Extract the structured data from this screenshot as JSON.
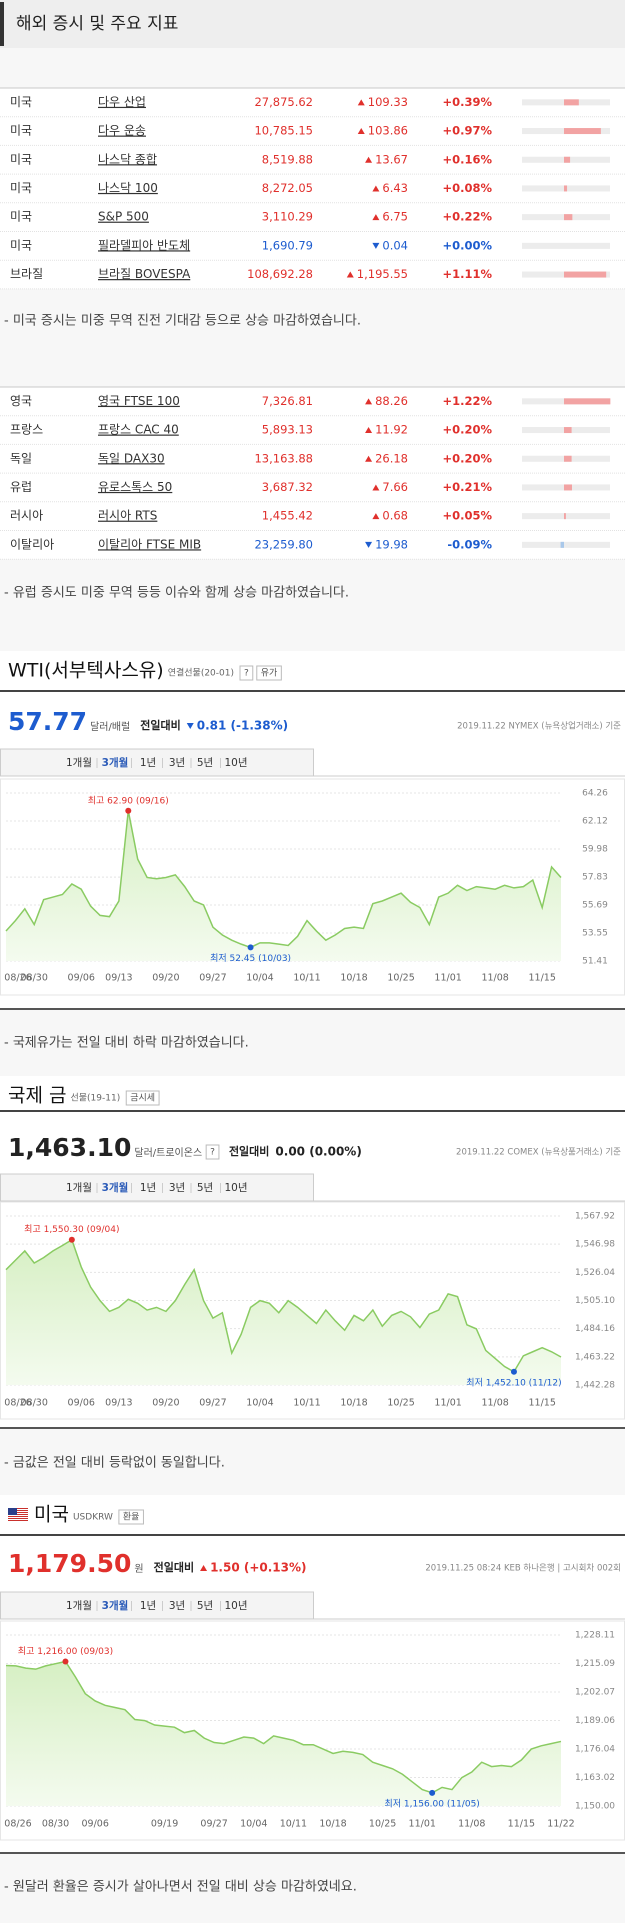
{
  "header": {
    "title": "해외 증시 및 주요 지표"
  },
  "colors": {
    "up": "#e0302c",
    "down": "#1d5ccf",
    "flat": "#222222",
    "up_bar": "#f2a3a3",
    "down_bar": "#a9c8ea",
    "line": "#8acb62",
    "area": "#e3f4d6"
  },
  "us_table": {
    "rows": [
      {
        "country": "미국",
        "name": "다우 산업",
        "price": "27,875.62",
        "change": "109.33",
        "change_pct": "+0.39%",
        "direction": "up"
      },
      {
        "country": "미국",
        "name": "다우 운송",
        "price": "10,785.15",
        "change": "103.86",
        "change_pct": "+0.97%",
        "direction": "up"
      },
      {
        "country": "미국",
        "name": "나스닥 종합",
        "price": "8,519.88",
        "change": "13.67",
        "change_pct": "+0.16%",
        "direction": "up"
      },
      {
        "country": "미국",
        "name": "나스닥 100",
        "price": "8,272.05",
        "change": "6.43",
        "change_pct": "+0.08%",
        "direction": "up"
      },
      {
        "country": "미국",
        "name": "S&P 500",
        "price": "3,110.29",
        "change": "6.75",
        "change_pct": "+0.22%",
        "direction": "up"
      },
      {
        "country": "미국",
        "name": "필라델피아 반도체",
        "price": "1,690.79",
        "change": "0.04",
        "change_pct": "+0.00%",
        "direction": "down"
      },
      {
        "country": "브라질",
        "name": "브라질 BOVESPA",
        "price": "108,692.28",
        "change": "1,195.55",
        "change_pct": "+1.11%",
        "direction": "up"
      }
    ],
    "pct": [
      0.39,
      0.97,
      0.16,
      0.08,
      0.22,
      0.0,
      1.11
    ]
  },
  "us_note": "- 미국 증시는 미중 무역 진전 기대감 등으로 상승 마감하였습니다.",
  "eu_table": {
    "rows": [
      {
        "country": "영국",
        "name": "영국 FTSE 100",
        "price": "7,326.81",
        "change": "88.26",
        "change_pct": "+1.22%",
        "direction": "up"
      },
      {
        "country": "프랑스",
        "name": "프랑스 CAC 40",
        "price": "5,893.13",
        "change": "11.92",
        "change_pct": "+0.20%",
        "direction": "up"
      },
      {
        "country": "독일",
        "name": "독일 DAX30",
        "price": "13,163.88",
        "change": "26.18",
        "change_pct": "+0.20%",
        "direction": "up"
      },
      {
        "country": "유럽",
        "name": "유로스톡스 50",
        "price": "3,687.32",
        "change": "7.66",
        "change_pct": "+0.21%",
        "direction": "up"
      },
      {
        "country": "러시아",
        "name": "러시아 RTS",
        "price": "1,455.42",
        "change": "0.68",
        "change_pct": "+0.05%",
        "direction": "up"
      },
      {
        "country": "이탈리아",
        "name": "이탈리아 FTSE MIB",
        "price": "23,259.80",
        "change": "19.98",
        "change_pct": "-0.09%",
        "direction": "down"
      }
    ],
    "pct": [
      1.22,
      0.2,
      0.2,
      0.21,
      0.05,
      -0.09
    ]
  },
  "eu_note": "- 유럽 증시도 미중 무역 등등 이슈와 함께 상승 마감하였습니다.",
  "chart_data": [
    {
      "type": "line",
      "title": "WTI(서부텍사스유)",
      "subtitle": "연결선물(20-01)",
      "buttons": [
        "?",
        "유가"
      ],
      "price": "57.77",
      "unit": "달러/배럴",
      "change_label": "전일대비",
      "change": "0.81 (-1.38%)",
      "direction": "down",
      "source": "2019.11.22 NYMEX (뉴욕상업거래소) 기준",
      "periods": [
        "1개월",
        "3개월",
        "1년",
        "3년",
        "5년",
        "10년"
      ],
      "active_period": "3개월",
      "high_label": "최고 62.90 (09/16)",
      "low_label": "최저 52.45 (10/03)",
      "categories": [
        "08/26",
        null,
        null,
        "08/30",
        null,
        null,
        null,
        null,
        "09/06",
        null,
        null,
        null,
        "09/13",
        null,
        null,
        null,
        null,
        "09/20",
        null,
        null,
        null,
        null,
        "09/27",
        null,
        null,
        null,
        null,
        "10/04",
        null,
        null,
        null,
        null,
        "10/11",
        null,
        null,
        null,
        null,
        "10/18",
        null,
        null,
        null,
        null,
        "10/25",
        null,
        null,
        null,
        null,
        "11/01",
        null,
        null,
        null,
        null,
        "11/08",
        null,
        null,
        null,
        null,
        "11/15",
        null,
        null
      ],
      "values": [
        53.7,
        54.5,
        55.4,
        54.2,
        56.1,
        56.3,
        56.5,
        57.3,
        56.9,
        55.6,
        54.9,
        54.8,
        56.0,
        62.9,
        59.2,
        57.8,
        57.7,
        57.8,
        58.0,
        57.1,
        56.0,
        55.7,
        54.0,
        53.4,
        53.0,
        52.7,
        52.45,
        52.8,
        52.8,
        52.7,
        52.6,
        53.3,
        54.5,
        53.7,
        53.0,
        53.4,
        53.9,
        54.0,
        53.9,
        55.8,
        56.0,
        56.3,
        56.6,
        55.9,
        55.5,
        54.2,
        56.3,
        56.6,
        57.2,
        56.8,
        57.1,
        57.0,
        56.9,
        57.2,
        57.0,
        57.1,
        57.6,
        55.5,
        58.6,
        57.8
      ],
      "ylim": [
        51.41,
        64.26
      ],
      "yticks": [
        64.26,
        62.12,
        59.98,
        57.83,
        55.69,
        53.55,
        51.41
      ],
      "grid": true
    },
    {
      "type": "line",
      "title": "국제 금",
      "subtitle": "선물(19-11)",
      "buttons": [
        "금시세"
      ],
      "price": "1,463.10",
      "unit": "달러/트로이온스",
      "unit_button": "?",
      "change_label": "전일대비",
      "change": "0.00 (0.00%)",
      "direction": "flat",
      "source": "2019.11.22 COMEX (뉴욕상품거래소) 기준",
      "periods": [
        "1개월",
        "3개월",
        "1년",
        "3년",
        "5년",
        "10년"
      ],
      "active_period": "3개월",
      "high_label": "최고 1,550.30 (09/04)",
      "low_label": "최저 1,452.10 (11/12)",
      "categories": [
        "08/26",
        null,
        null,
        "08/30",
        null,
        null,
        null,
        null,
        "09/06",
        null,
        null,
        null,
        "09/13",
        null,
        null,
        null,
        null,
        "09/20",
        null,
        null,
        null,
        null,
        "09/27",
        null,
        null,
        null,
        null,
        "10/04",
        null,
        null,
        null,
        null,
        "10/11",
        null,
        null,
        null,
        null,
        "10/18",
        null,
        null,
        null,
        null,
        "10/25",
        null,
        null,
        null,
        null,
        "11/01",
        null,
        null,
        null,
        null,
        "11/08",
        null,
        null,
        null,
        null,
        "11/15",
        null,
        null
      ],
      "values": [
        1528,
        1535,
        1542,
        1533,
        1537,
        1542,
        1546,
        1550.3,
        1530,
        1515,
        1505,
        1497,
        1500,
        1506,
        1503,
        1498,
        1500,
        1497,
        1505,
        1517,
        1528,
        1505,
        1492,
        1496,
        1466,
        1480,
        1500,
        1505,
        1503,
        1496,
        1505,
        1500,
        1494,
        1488,
        1498,
        1490,
        1483,
        1494,
        1490,
        1498,
        1486,
        1494,
        1497,
        1493,
        1485,
        1495,
        1498,
        1510,
        1508,
        1487,
        1484,
        1468,
        1462,
        1456,
        1452.1,
        1464,
        1467,
        1470,
        1467,
        1463.1
      ],
      "ylim": [
        1442.28,
        1567.92
      ],
      "yticks": [
        {
          "value": 1567.92,
          "label": "1,567.92"
        },
        {
          "value": 1546.98,
          "label": "1,546.98"
        },
        {
          "value": 1526.04,
          "label": "1,526.04"
        },
        {
          "value": 1505.1,
          "label": "1,505.10"
        },
        {
          "value": 1484.16,
          "label": "1,484.16"
        },
        {
          "value": 1463.22,
          "label": "1,463.22"
        },
        {
          "value": 1442.28,
          "label": "1,442.28"
        }
      ],
      "grid": true
    },
    {
      "type": "line",
      "title": "미국",
      "subtitle": "USDKRW",
      "buttons": [
        "환율"
      ],
      "price": "1,179.50",
      "unit": "원",
      "change_label": "전일대비",
      "change": "1.50 (+0.13%)",
      "direction": "up",
      "source": "2019.11.25 08:24 KEB 하나은행 | 고시회차 002회",
      "periods": [
        "1개월",
        "3개월",
        "1년",
        "3년",
        "5년",
        "10년"
      ],
      "active_period": "3개월",
      "high_label": "최고 1,216.00 (09/03)",
      "low_label": "최저 1,156.00 (11/05)",
      "categories": [
        null,
        "08/26",
        null,
        null,
        null,
        "08/30",
        null,
        null,
        null,
        "09/06",
        null,
        null,
        null,
        null,
        null,
        null,
        "09/19",
        null,
        null,
        null,
        null,
        "09/27",
        null,
        null,
        null,
        "10/04",
        null,
        null,
        null,
        "10/11",
        null,
        null,
        null,
        "10/18",
        null,
        null,
        null,
        null,
        "10/25",
        null,
        null,
        null,
        "11/01",
        null,
        null,
        null,
        null,
        "11/08",
        null,
        null,
        null,
        null,
        "11/15",
        null,
        null,
        null,
        "11/22"
      ],
      "values": [
        1214.2,
        1214.0,
        1213.0,
        1212.5,
        1214.0,
        1215.0,
        1216.0,
        1209.0,
        1201.3,
        1198.0,
        1196.0,
        1195.0,
        1194.0,
        1189.5,
        1189.0,
        1187.0,
        1186.5,
        1186.0,
        1183.5,
        1184.5,
        1181.0,
        1179.0,
        1178.5,
        1180.0,
        1181.5,
        1181.0,
        1178.5,
        1182.0,
        1181.0,
        1180.0,
        1178.0,
        1178.0,
        1176.0,
        1174.0,
        1175.0,
        1174.5,
        1173.5,
        1170.0,
        1168.5,
        1167.0,
        1164.5,
        1161.0,
        1157.5,
        1156.0,
        1158.5,
        1157.5,
        1163.0,
        1165.5,
        1170.0,
        1168.0,
        1168.5,
        1168.0,
        1171.0,
        1176.0,
        1177.5,
        1178.5,
        1179.5
      ],
      "ylim": [
        1150.0,
        1228.11
      ],
      "yticks": [
        {
          "value": 1228.11,
          "label": "1,228.11"
        },
        {
          "value": 1215.09,
          "label": "1,215.09"
        },
        {
          "value": 1202.07,
          "label": "1,202.07"
        },
        {
          "value": 1189.06,
          "label": "1,189.06"
        },
        {
          "value": 1176.04,
          "label": "1,176.04"
        },
        {
          "value": 1163.02,
          "label": "1,163.02"
        },
        {
          "value": 1150,
          "label": "1,150.00"
        }
      ],
      "grid": true
    }
  ],
  "wti_note": "- 국제유가는 전일 대비 하락 마감하였습니다.",
  "gold_note": "- 금값은 전일 대비 등락없이 동일합니다.",
  "usd_note": "- 원달러 환율은 증시가 살아나면서 전일 대비 상승 마감하였네요."
}
